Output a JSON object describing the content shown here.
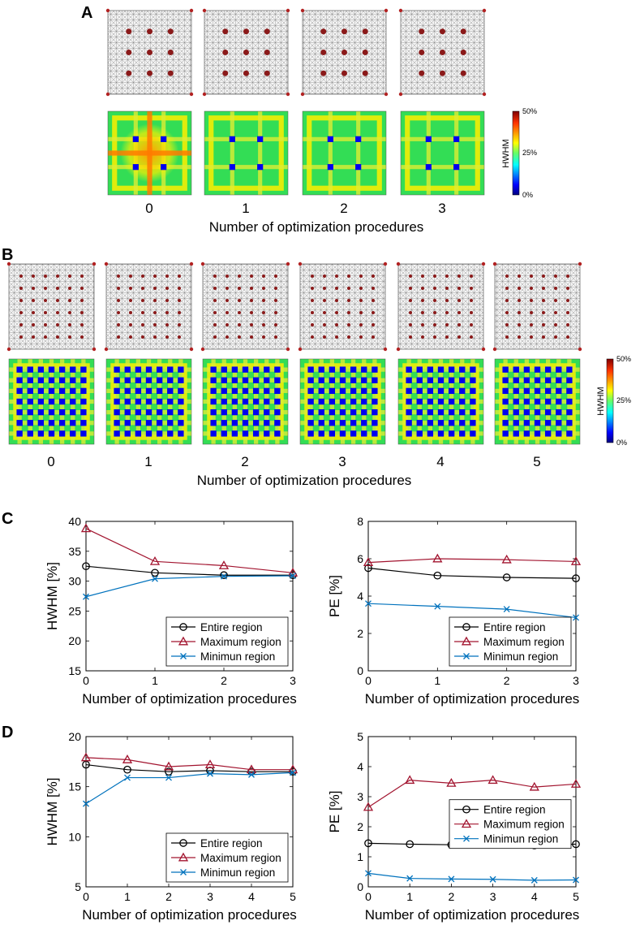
{
  "panels": {
    "A": {
      "label": "A",
      "xlabel": "Number of optimization procedures",
      "indices": [
        "0",
        "1",
        "2",
        "3"
      ]
    },
    "B": {
      "label": "B",
      "xlabel": "Number of optimization procedures",
      "indices": [
        "0",
        "1",
        "2",
        "3",
        "4",
        "5"
      ]
    },
    "C": {
      "label": "C"
    },
    "D": {
      "label": "D"
    }
  },
  "colorbar": {
    "label": "HWHM",
    "ticks": [
      "50%",
      "25%",
      "0%"
    ]
  },
  "colors": {
    "entire": "#000000",
    "maximum": "#a2142f",
    "minimum": "#0072bd"
  },
  "chart_data": [
    {
      "id": "C-left",
      "type": "line",
      "xlabel": "Number of optimization procedures",
      "ylabel": "HWHM [%]",
      "x": [
        0,
        1,
        2,
        3
      ],
      "xlim": [
        0,
        3
      ],
      "ylim": [
        15,
        40
      ],
      "xticks": [
        0,
        1,
        2,
        3
      ],
      "yticks": [
        15,
        20,
        25,
        30,
        35,
        40
      ],
      "series": [
        {
          "name": "Entire region",
          "marker": "circle",
          "values": [
            32.5,
            31.4,
            31.0,
            31.0
          ]
        },
        {
          "name": "Maximum region",
          "marker": "triangle",
          "values": [
            38.8,
            33.3,
            32.6,
            31.4
          ]
        },
        {
          "name": "Minimun region",
          "marker": "x",
          "values": [
            27.4,
            30.4,
            30.8,
            30.9
          ]
        }
      ],
      "legend": "bottom-right"
    },
    {
      "id": "C-right",
      "type": "line",
      "xlabel": "Number of optimization procedures",
      "ylabel": "PE [%]",
      "x": [
        0,
        1,
        2,
        3
      ],
      "xlim": [
        0,
        3
      ],
      "ylim": [
        0,
        8
      ],
      "xticks": [
        0,
        1,
        2,
        3
      ],
      "yticks": [
        0,
        2,
        4,
        6,
        8
      ],
      "series": [
        {
          "name": "Entire region",
          "marker": "circle",
          "values": [
            5.5,
            5.1,
            5.0,
            4.95
          ]
        },
        {
          "name": "Maximum region",
          "marker": "triangle",
          "values": [
            5.8,
            6.0,
            5.95,
            5.85
          ]
        },
        {
          "name": "Minimun region",
          "marker": "x",
          "values": [
            3.6,
            3.45,
            3.3,
            2.85
          ]
        }
      ],
      "legend": "bottom-right"
    },
    {
      "id": "D-left",
      "type": "line",
      "xlabel": "Number of optimization procedures",
      "ylabel": "HWHM [%]",
      "x": [
        0,
        1,
        2,
        3,
        4,
        5
      ],
      "xlim": [
        0,
        5
      ],
      "ylim": [
        5,
        20
      ],
      "xticks": [
        0,
        1,
        2,
        3,
        4,
        5
      ],
      "yticks": [
        5,
        10,
        15,
        20
      ],
      "series": [
        {
          "name": "Entire region",
          "marker": "circle",
          "values": [
            17.2,
            16.7,
            16.5,
            16.6,
            16.5,
            16.5
          ]
        },
        {
          "name": "Maximum region",
          "marker": "triangle",
          "values": [
            17.9,
            17.7,
            17.0,
            17.2,
            16.7,
            16.7
          ]
        },
        {
          "name": "Minimun region",
          "marker": "x",
          "values": [
            13.3,
            15.9,
            15.9,
            16.3,
            16.2,
            16.4
          ]
        }
      ],
      "legend": "bottom-right"
    },
    {
      "id": "D-right",
      "type": "line",
      "xlabel": "Number of optimization procedures",
      "ylabel": "PE [%]",
      "x": [
        0,
        1,
        2,
        3,
        4,
        5
      ],
      "xlim": [
        0,
        5
      ],
      "ylim": [
        0,
        5
      ],
      "xticks": [
        0,
        1,
        2,
        3,
        4,
        5
      ],
      "yticks": [
        0,
        1,
        2,
        3,
        4,
        5
      ],
      "series": [
        {
          "name": "Entire region",
          "marker": "circle",
          "values": [
            1.45,
            1.42,
            1.4,
            1.48,
            1.38,
            1.42
          ]
        },
        {
          "name": "Maximum region",
          "marker": "triangle",
          "values": [
            2.65,
            3.55,
            3.45,
            3.55,
            3.32,
            3.42
          ]
        },
        {
          "name": "Minimun region",
          "marker": "x",
          "values": [
            0.45,
            0.28,
            0.26,
            0.25,
            0.22,
            0.23
          ]
        }
      ],
      "legend": "center-right"
    }
  ]
}
